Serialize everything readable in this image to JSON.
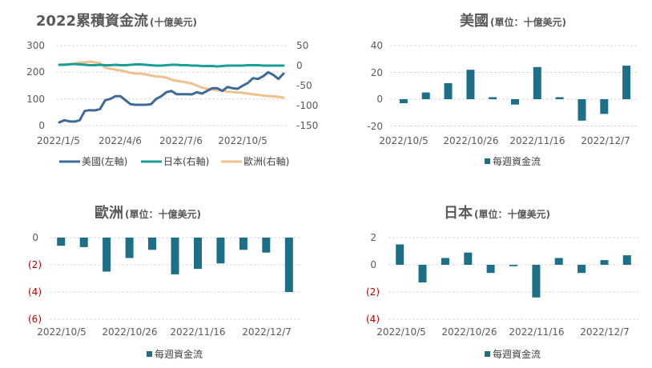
{
  "colors": {
    "us": "#3d6a99",
    "jp": "#1a9e98",
    "eu": "#efc28d",
    "bar": "#1b6f86",
    "neg_tick": "#c00000"
  },
  "chart_data": [
    {
      "id": "cumulative",
      "type": "line",
      "title": "2022累積資金流",
      "title_unit": "(十億美元)",
      "x_tick_labels": [
        "2022/1/5",
        "2022/4/6",
        "2022/7/6",
        "2022/10/5"
      ],
      "y_left_ticks": [
        "300",
        "200",
        "100",
        "0"
      ],
      "y_right_ticks": [
        "50",
        "0",
        "-50",
        "-100",
        "-150"
      ],
      "ylim_left": [
        0,
        300
      ],
      "ylim_right": [
        -150,
        50
      ],
      "legend_position": "bottom",
      "series": [
        {
          "name": "美國(左軸)",
          "axis": "left",
          "color": "#3d6a99",
          "values": [
            12,
            20,
            16,
            15,
            20,
            55,
            58,
            57,
            62,
            95,
            100,
            110,
            110,
            95,
            80,
            78,
            78,
            78,
            80,
            100,
            110,
            125,
            130,
            118,
            118,
            118,
            117,
            125,
            120,
            130,
            140,
            140,
            130,
            145,
            140,
            138,
            150,
            160,
            178,
            175,
            185,
            200,
            190,
            175,
            195
          ]
        },
        {
          "name": "日本(右軸)",
          "axis": "right",
          "color": "#1a9e98",
          "values": [
            2,
            2,
            3,
            4,
            3,
            2,
            1,
            1,
            2,
            1,
            1,
            2,
            1,
            1,
            2,
            3,
            3,
            2,
            1,
            0,
            0,
            1,
            2,
            2,
            1,
            1,
            0,
            0,
            -1,
            -1,
            -1,
            -2,
            -1,
            0,
            0,
            0,
            0,
            1,
            1,
            1,
            0,
            0,
            0,
            0,
            0
          ]
        },
        {
          "name": "歐洲(右軸)",
          "axis": "right",
          "color": "#efc28d",
          "values": [
            2,
            3,
            4,
            5,
            8,
            8,
            10,
            8,
            6,
            -5,
            -8,
            -10,
            -12,
            -15,
            -18,
            -20,
            -20,
            -22,
            -25,
            -27,
            -28,
            -30,
            -35,
            -38,
            -40,
            -42,
            -45,
            -50,
            -55,
            -58,
            -60,
            -62,
            -62,
            -65,
            -66,
            -67,
            -68,
            -70,
            -72,
            -73,
            -75,
            -76,
            -77,
            -78,
            -80
          ]
        }
      ]
    },
    {
      "id": "us",
      "type": "bar",
      "title": "美國",
      "title_unit": "(單位：十億美元)",
      "x_tick_labels": [
        "2022/10/5",
        "2022/10/26",
        "2022/11/16",
        "2022/12/7"
      ],
      "y_ticks": [
        "40",
        "20",
        "0",
        "-20"
      ],
      "ylim": [
        -20,
        40
      ],
      "legend": "每週資金流",
      "values": [
        -3,
        5,
        12,
        22,
        1.5,
        -4,
        24,
        1.5,
        -16,
        -11,
        25
      ]
    },
    {
      "id": "eu",
      "type": "bar",
      "title": "歐洲",
      "title_unit": "(單位：十億美元)",
      "x_tick_labels": [
        "2022/10/5",
        "2022/10/26",
        "2022/11/16",
        "2022/12/7"
      ],
      "y_ticks": [
        "0",
        "(2)",
        "(4)",
        "(6)"
      ],
      "ylim": [
        -6,
        0
      ],
      "legend": "每週資金流",
      "values": [
        -0.6,
        -0.7,
        -2.5,
        -1.5,
        -0.9,
        -2.7,
        -2.3,
        -1.9,
        -0.9,
        -1.1,
        -4.0
      ]
    },
    {
      "id": "jp",
      "type": "bar",
      "title": "日本",
      "title_unit": "(單位：十億美元)",
      "x_tick_labels": [
        "2022/10/5",
        "2022/10/26",
        "2022/11/16",
        "2022/12/7"
      ],
      "y_ticks": [
        "2",
        "0",
        "(2)",
        "(4)"
      ],
      "ylim": [
        -4,
        2
      ],
      "legend": "每週資金流",
      "values": [
        1.5,
        -1.3,
        0.5,
        0.9,
        -0.6,
        -0.1,
        -2.4,
        0.5,
        -0.6,
        0.35,
        0.7
      ]
    }
  ]
}
